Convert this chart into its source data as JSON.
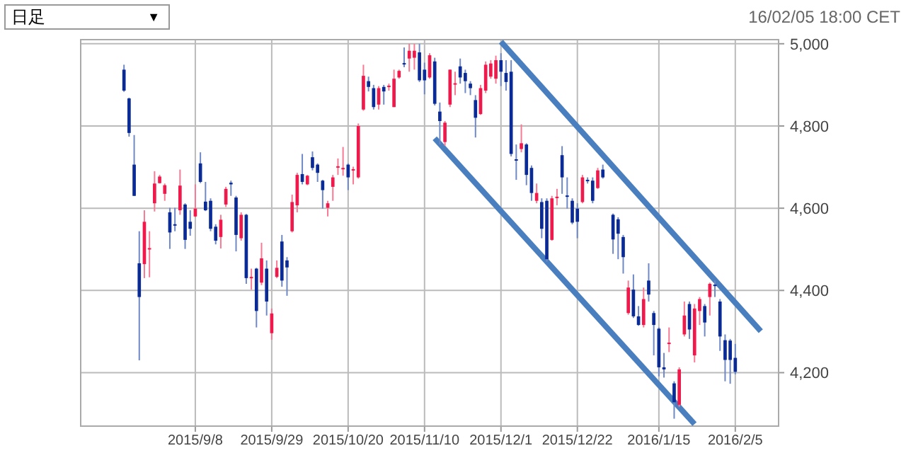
{
  "chart_data": {
    "type": "candlestick",
    "annotations": [
      "日足",
      "▼",
      "16/02/05 18:00 CET"
    ],
    "categories": [
      null,
      null,
      null,
      null,
      null,
      null,
      null,
      null,
      null,
      null,
      null,
      null,
      null,
      null,
      null,
      null,
      null,
      null,
      null,
      null,
      null,
      null,
      "2015/9/8",
      null,
      null,
      null,
      null,
      null,
      null,
      null,
      null,
      null,
      null,
      null,
      null,
      null,
      null,
      "2015/9/29",
      null,
      null,
      null,
      null,
      null,
      null,
      null,
      null,
      null,
      null,
      null,
      null,
      null,
      null,
      "2015/10/20",
      null,
      null,
      null,
      null,
      null,
      null,
      null,
      null,
      null,
      null,
      null,
      null,
      null,
      null,
      "2015/11/10",
      null,
      null,
      null,
      null,
      null,
      null,
      null,
      null,
      null,
      null,
      null,
      null,
      null,
      null,
      "2015/12/1",
      null,
      null,
      null,
      null,
      null,
      null,
      null,
      null,
      null,
      null,
      null,
      null,
      null,
      null,
      "2015/12/22",
      null,
      null,
      null,
      null,
      null,
      null,
      null,
      null,
      null,
      null,
      null,
      null,
      null,
      null,
      null,
      "2016/1/15",
      null,
      null,
      null,
      null,
      null,
      null,
      null,
      null,
      null,
      null,
      null,
      null,
      null,
      null,
      "2016/2/5",
      null,
      null,
      null,
      null,
      null,
      null,
      null,
      null
    ],
    "ohlc": [
      null,
      null,
      null,
      null,
      null,
      null,
      null,
      null,
      [
        4937,
        4949,
        4883,
        4886
      ],
      [
        4867,
        4869,
        4774,
        4783
      ],
      [
        4706,
        4778,
        4630,
        4630
      ],
      [
        4466,
        4544,
        4230,
        4384
      ],
      [
        4464,
        4595,
        4430,
        4567
      ],
      [
        4500,
        4544,
        4432,
        4503
      ],
      [
        4612,
        4690,
        4592,
        4660
      ],
      [
        4661,
        4681,
        4660,
        4677
      ],
      [
        4635,
        4660,
        4618,
        4656
      ],
      [
        4590,
        4601,
        4501,
        4541
      ],
      [
        4561,
        4601,
        4544,
        4559
      ],
      [
        4595,
        4694,
        4584,
        4655
      ],
      [
        4609,
        4612,
        4501,
        4523
      ],
      [
        4567,
        4595,
        4533,
        4550
      ],
      [
        4580,
        4658,
        4578,
        4599
      ],
      [
        4709,
        4736,
        4661,
        4664
      ],
      [
        4616,
        4664,
        4593,
        4595
      ],
      [
        4618,
        4624,
        4544,
        4550
      ],
      [
        4555,
        4561,
        4512,
        4521
      ],
      [
        4530,
        4584,
        4502,
        4572
      ],
      [
        4609,
        4652,
        4603,
        4647
      ],
      [
        4662,
        4667,
        4630,
        4658
      ],
      [
        4626,
        4630,
        4495,
        4535
      ],
      [
        4527,
        4590,
        4521,
        4584
      ],
      [
        4584,
        4586,
        4416,
        4430
      ],
      [
        4431,
        4453,
        4402,
        4433
      ],
      [
        4453,
        4455,
        4310,
        4350
      ],
      [
        4419,
        4516,
        4413,
        4478
      ],
      [
        4453,
        4473,
        4339,
        4373
      ],
      [
        4296,
        4356,
        4280,
        4344
      ],
      [
        4433,
        4473,
        4430,
        4455
      ],
      [
        4519,
        4535,
        4409,
        4424
      ],
      [
        4473,
        4481,
        4387,
        4456
      ],
      [
        4544,
        4633,
        4541,
        4615
      ],
      [
        4607,
        4686,
        4590,
        4681
      ],
      [
        4683,
        4732,
        4658,
        4664
      ],
      [
        4658,
        4681,
        4656,
        4679
      ],
      [
        4724,
        4738,
        4692,
        4698
      ],
      [
        4706,
        4709,
        4664,
        4686
      ],
      [
        4667,
        4669,
        4599,
        4644
      ],
      [
        4601,
        4618,
        4580,
        4612
      ],
      [
        4652,
        4681,
        4618,
        4675
      ],
      [
        4700,
        4721,
        4681,
        4702
      ],
      [
        4696,
        4749,
        4679,
        4698
      ],
      [
        4706,
        4709,
        4644,
        4675
      ],
      [
        4692,
        4701,
        4658,
        4695
      ],
      [
        4675,
        4806,
        4672,
        4800
      ],
      [
        4840,
        4949,
        4837,
        4922
      ],
      [
        4909,
        4920,
        4884,
        4895
      ],
      [
        4892,
        4900,
        4840,
        4846
      ],
      [
        4852,
        4897,
        4840,
        4892
      ],
      [
        4895,
        4900,
        4852,
        4884
      ],
      [
        4896,
        4903,
        4886,
        4898
      ],
      [
        4846,
        4937,
        4846,
        4915
      ],
      [
        4918,
        4937,
        4915,
        4934
      ],
      [
        4953,
        4991,
        4943,
        4951
      ],
      [
        4964,
        5000,
        4932,
        4983
      ],
      [
        4966,
        5000,
        4937,
        4983
      ],
      [
        4979,
        5000,
        4907,
        4911
      ],
      [
        4937,
        4954,
        4877,
        4911
      ],
      [
        4918,
        4977,
        4915,
        4972
      ],
      [
        4957,
        4966,
        4850,
        4854
      ],
      [
        4835,
        4857,
        4755,
        4812
      ],
      [
        4761,
        4812,
        4752,
        4808
      ],
      [
        4852,
        4937,
        4846,
        4937
      ],
      [
        4902,
        4932,
        4875,
        4904
      ],
      [
        4945,
        4964,
        4903,
        4918
      ],
      [
        4929,
        4937,
        4880,
        4909
      ],
      [
        4903,
        4909,
        4875,
        4892
      ],
      [
        4863,
        4875,
        4772,
        4820
      ],
      [
        4829,
        4900,
        4827,
        4892
      ],
      [
        4886,
        4957,
        4880,
        4949
      ],
      [
        4920,
        4960,
        4915,
        4952
      ],
      [
        4915,
        4971,
        4903,
        4960
      ],
      [
        4960,
        4977,
        4897,
        4932
      ],
      [
        4929,
        4960,
        4886,
        4907
      ],
      [
        4932,
        4960,
        4726,
        4732
      ],
      [
        4719,
        4755,
        4669,
        4717
      ],
      [
        4744,
        4804,
        4736,
        4758
      ],
      [
        4755,
        4758,
        4656,
        4681
      ],
      [
        4698,
        4704,
        4618,
        4637
      ],
      [
        4618,
        4660,
        4612,
        4637
      ],
      [
        4615,
        4624,
        4527,
        4550
      ],
      [
        4618,
        4624,
        4470,
        4476
      ],
      [
        4523,
        4630,
        4521,
        4624
      ],
      [
        4626,
        4647,
        4607,
        4628
      ],
      [
        4729,
        4751,
        4635,
        4675
      ],
      [
        4631,
        4675,
        4599,
        4629
      ],
      [
        4618,
        4624,
        4561,
        4565
      ],
      [
        4599,
        4612,
        4527,
        4567
      ],
      [
        4615,
        4681,
        4612,
        4675
      ],
      [
        4669,
        4675,
        4660,
        4667
      ],
      [
        4667,
        4675,
        4612,
        4618
      ],
      [
        4649,
        4698,
        4647,
        4692
      ],
      [
        4694,
        4706,
        4672,
        4675
      ],
      null,
      [
        4584,
        4587,
        4489,
        4524
      ],
      [
        4573,
        4578,
        4476,
        4538
      ],
      [
        4530,
        4535,
        4441,
        4481
      ],
      [
        4345,
        4424,
        4341,
        4407
      ],
      [
        4402,
        4439,
        4333,
        4337
      ],
      [
        4337,
        4362,
        4314,
        4316
      ],
      [
        4316,
        4407,
        4310,
        4379
      ],
      [
        4424,
        4466,
        4373,
        4390
      ],
      [
        4345,
        4350,
        4242,
        4316
      ],
      [
        4307,
        4310,
        4191,
        4213
      ],
      [
        4213,
        4248,
        4188,
        4208
      ],
      [
        4271,
        4310,
        4250,
        4273
      ],
      [
        4174,
        4179,
        4088,
        4128
      ],
      [
        4122,
        4213,
        4117,
        4208
      ],
      [
        4293,
        4373,
        4288,
        4339
      ],
      [
        4367,
        4373,
        4282,
        4305
      ],
      [
        4242,
        4367,
        4225,
        4356
      ],
      [
        4350,
        4384,
        4316,
        4379
      ],
      [
        4362,
        4367,
        4288,
        4322
      ],
      [
        4384,
        4419,
        4339,
        4416
      ],
      [
        4414,
        4424,
        4384,
        4412
      ],
      [
        4373,
        4379,
        4253,
        4288
      ],
      [
        4279,
        4293,
        4179,
        4231
      ],
      [
        4278,
        4282,
        4173,
        4231
      ],
      [
        4236,
        4270,
        4196,
        4202
      ],
      null,
      null,
      null,
      null,
      null,
      null,
      null,
      null
    ],
    "series": [
      {
        "type": "line",
        "color": "#4a7fbf",
        "values": [
          null,
          null,
          null,
          null,
          null,
          null,
          null,
          null,
          null,
          null,
          null,
          null,
          null,
          null,
          null,
          null,
          null,
          null,
          null,
          null,
          null,
          null,
          null,
          null,
          null,
          null,
          null,
          null,
          null,
          null,
          null,
          null,
          null,
          null,
          null,
          null,
          null,
          null,
          null,
          null,
          null,
          null,
          null,
          null,
          null,
          null,
          null,
          null,
          null,
          null,
          null,
          null,
          null,
          null,
          null,
          null,
          null,
          null,
          null,
          null,
          null,
          null,
          null,
          null,
          null,
          null,
          null,
          null,
          null,
          null,
          null,
          null,
          null,
          null,
          null,
          null,
          null,
          null,
          null,
          null,
          null,
          null,
          5005,
          null,
          null,
          null,
          null,
          null,
          null,
          null,
          null,
          null,
          null,
          null,
          null,
          null,
          null,
          null,
          null,
          null,
          null,
          null,
          null,
          null,
          null,
          null,
          null,
          null,
          null,
          null,
          null,
          null,
          null,
          null,
          null,
          null,
          null,
          null,
          null,
          null,
          null,
          null,
          null,
          null,
          null,
          null,
          null,
          null,
          null,
          null,
          null,
          null,
          null,
          4301,
          null,
          null,
          null
        ]
      },
      {
        "type": "line",
        "color": "#4a7fbf",
        "values": [
          null,
          null,
          null,
          null,
          null,
          null,
          null,
          null,
          null,
          null,
          null,
          null,
          null,
          null,
          null,
          null,
          null,
          null,
          null,
          null,
          null,
          null,
          null,
          null,
          null,
          null,
          null,
          null,
          null,
          null,
          null,
          null,
          null,
          null,
          null,
          null,
          null,
          null,
          null,
          null,
          null,
          null,
          null,
          null,
          null,
          null,
          null,
          null,
          null,
          null,
          null,
          null,
          null,
          null,
          null,
          null,
          null,
          null,
          null,
          null,
          null,
          null,
          null,
          null,
          null,
          null,
          null,
          null,
          null,
          4770,
          null,
          null,
          null,
          null,
          null,
          null,
          null,
          null,
          null,
          null,
          null,
          null,
          null,
          null,
          null,
          null,
          null,
          null,
          null,
          null,
          null,
          null,
          null,
          null,
          null,
          null,
          null,
          null,
          null,
          null,
          null,
          null,
          null,
          null,
          null,
          null,
          null,
          null,
          null,
          null,
          null,
          null,
          null,
          null,
          null,
          null,
          null,
          null,
          null,
          null,
          4075,
          null,
          null,
          null,
          null,
          null,
          null,
          null,
          null,
          null,
          null,
          null,
          null,
          null,
          null,
          null,
          null
        ]
      }
    ],
    "ylim": [
      4070,
      5010
    ],
    "yticks": [
      {
        "value": 4200,
        "label": "4,200"
      },
      {
        "value": 4400,
        "label": "4,400"
      },
      {
        "value": 4600,
        "label": "4,600"
      },
      {
        "value": 4800,
        "label": "4,800"
      },
      {
        "value": 5000,
        "label": "5,000"
      }
    ],
    "grid": true
  }
}
